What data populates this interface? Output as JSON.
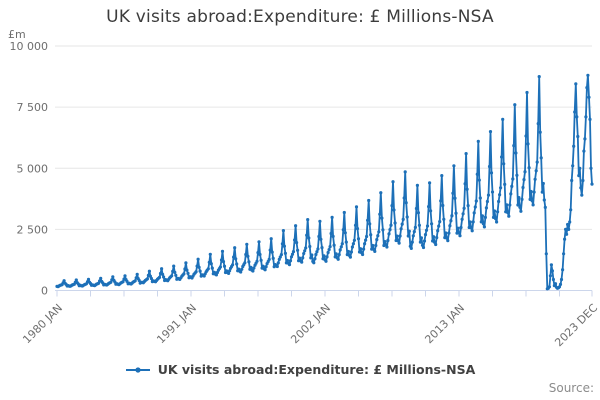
{
  "page": {
    "title": "UK visits abroad:Expenditure: £ Millions-NSA",
    "source_label": "Source:"
  },
  "legend": {
    "label": "UK visits abroad:Expenditure: £ Millions-NSA"
  },
  "colors": {
    "line": "#1d70b8",
    "grid": "#e6e6e6",
    "axis": "#ccd6eb",
    "tick_text": "#6e6e6e",
    "title_text": "#3c3c3c",
    "legend_text": "#414141",
    "source_text": "#8c8c8c"
  },
  "chart_data": {
    "type": "line",
    "title": "UK visits abroad:Expenditure: £ Millions-NSA",
    "unit_label": "£m",
    "xlabel": "",
    "ylabel": "£m",
    "frequency": "monthly",
    "x_start": "1980 JAN",
    "x_end": "2023 DEC",
    "n_points": 528,
    "ylim": [
      0,
      10000
    ],
    "grid": "horizontal-only",
    "legend_position": "bottom",
    "yticks": [
      {
        "value": 0,
        "label": "0"
      },
      {
        "value": 2500,
        "label": "2 500"
      },
      {
        "value": 5000,
        "label": "5 000"
      },
      {
        "value": 7500,
        "label": "7 500"
      },
      {
        "value": 10000,
        "label": "10 000"
      }
    ],
    "xticks": {
      "minor_month_indices": [
        0,
        33,
        66,
        99,
        132,
        165,
        198,
        231,
        264,
        297,
        330,
        363,
        396,
        429,
        462,
        495,
        527
      ],
      "labeled": [
        {
          "month_index": 0,
          "label": "1980 JAN"
        },
        {
          "month_index": 132,
          "label": "1991 JAN"
        },
        {
          "month_index": 264,
          "label": "2002 JAN"
        },
        {
          "month_index": 396,
          "label": "2013 JAN"
        },
        {
          "month_index": 527,
          "label": "2023 DEC"
        }
      ]
    },
    "series": [
      {
        "name": "UK visits abroad:Expenditure: £ Millions-NSA",
        "color": "#1d70b8",
        "marker": "circle",
        "values": [
          168,
          160,
          184,
          208,
          224,
          240,
          312,
          400,
          296,
          248,
          184,
          200,
          181,
          172,
          198,
          224,
          241,
          258,
          335,
          430,
          318,
          267,
          198,
          215,
          193,
          184,
          212,
          239,
          258,
          276,
          359,
          460,
          340,
          285,
          212,
          230,
          210,
          200,
          230,
          260,
          280,
          300,
          390,
          500,
          370,
          310,
          230,
          250,
          235,
          224,
          258,
          291,
          314,
          336,
          437,
          560,
          414,
          347,
          258,
          280,
          252,
          240,
          276,
          312,
          336,
          360,
          468,
          600,
          444,
          372,
          276,
          300,
          277,
          264,
          304,
          343,
          370,
          396,
          515,
          660,
          488,
          409,
          304,
          330,
          332,
          316,
          363,
          411,
          442,
          474,
          616,
          790,
          585,
          490,
          363,
          395,
          374,
          356,
          409,
          463,
          498,
          534,
          694,
          890,
          659,
          552,
          409,
          445,
          420,
          400,
          460,
          520,
          560,
          600,
          780,
          1000,
          740,
          620,
          460,
          500,
          475,
          452,
          520,
          588,
          633,
          678,
          881,
          1130,
          836,
          701,
          520,
          565,
          538,
          512,
          589,
          666,
          717,
          768,
          998,
          1280,
          947,
          794,
          589,
          640,
          622,
          592,
          681,
          770,
          829,
          888,
          1154,
          1480,
          1095,
          918,
          681,
          740,
          672,
          640,
          736,
          832,
          896,
          960,
          1248,
          1600,
          1184,
          992,
          736,
          800,
          735,
          700,
          805,
          910,
          980,
          1050,
          1365,
          1750,
          1295,
          1085,
          805,
          875,
          794,
          756,
          869,
          983,
          1058,
          1134,
          1474,
          1890,
          1399,
          1172,
          869,
          945,
          836,
          796,
          915,
          1035,
          1114,
          1194,
          1552,
          1990,
          1473,
          1234,
          915,
          995,
          890,
          848,
          975,
          1102,
          1187,
          1272,
          1654,
          2120,
          1569,
          1314,
          975,
          1060,
          1029,
          980,
          1127,
          1274,
          1372,
          1470,
          1911,
          2450,
          1813,
          1519,
          1127,
          1225,
          1113,
          1060,
          1219,
          1378,
          1484,
          1590,
          2067,
          2650,
          1961,
          1643,
          1219,
          1325,
          1218,
          1160,
          1334,
          1508,
          1624,
          1740,
          2262,
          2900,
          2146,
          1798,
          1334,
          1450,
          1189,
          1132,
          1302,
          1472,
          1585,
          1698,
          2207,
          2830,
          2094,
          1755,
          1302,
          1415,
          1256,
          1196,
          1375,
          1555,
          1674,
          1794,
          2332,
          2990,
          2213,
          1854,
          1375,
          1495,
          1340,
          1276,
          1467,
          1659,
          1786,
          1914,
          2488,
          3190,
          2361,
          1978,
          1467,
          1595,
          1436,
          1368,
          1573,
          1778,
          1915,
          2052,
          2668,
          3420,
          2531,
          2120,
          1573,
          1710,
          1546,
          1472,
          1693,
          1914,
          2061,
          2208,
          2870,
          3680,
          2723,
          2282,
          1693,
          1840,
          1680,
          1600,
          1840,
          2080,
          2240,
          2400,
          3120,
          4000,
          2960,
          2480,
          1840,
          2000,
          1869,
          1780,
          2047,
          2314,
          2492,
          2670,
          3471,
          4450,
          3293,
          2759,
          2047,
          2225,
          2037,
          1940,
          2231,
          2522,
          2716,
          2910,
          3783,
          4850,
          3589,
          3007,
          2231,
          2425,
          1806,
          1720,
          1978,
          2236,
          2408,
          2580,
          3354,
          4300,
          3182,
          2666,
          1978,
          2150,
          1848,
          1760,
          2024,
          2288,
          2464,
          2640,
          3432,
          4400,
          3256,
          2728,
          2024,
          2200,
          1974,
          1880,
          2162,
          2444,
          2632,
          2820,
          3666,
          4700,
          3478,
          2914,
          2162,
          2350,
          2142,
          2040,
          2346,
          2652,
          2856,
          3060,
          3978,
          5100,
          3774,
          3162,
          2346,
          2550,
          2352,
          2240,
          2576,
          2912,
          3136,
          3360,
          4368,
          5600,
          4144,
          3472,
          2576,
          2800,
          2562,
          2440,
          2806,
          3172,
          3416,
          3660,
          4758,
          6100,
          4514,
          3782,
          2806,
          3050,
          2730,
          2600,
          2990,
          3380,
          3640,
          3900,
          5070,
          6500,
          4810,
          4030,
          2990,
          3250,
          2940,
          2800,
          3220,
          3640,
          3920,
          4200,
          5460,
          7000,
          5180,
          4340,
          3220,
          3500,
          3192,
          3040,
          3496,
          3952,
          4256,
          4560,
          5928,
          7600,
          5624,
          4712,
          3496,
          3800,
          3402,
          3240,
          3726,
          4212,
          4536,
          4860,
          6318,
          8100,
          5994,
          5022,
          3726,
          4050,
          3675,
          3500,
          4025,
          4550,
          4900,
          5250,
          6825,
          8750,
          6475,
          5425,
          4025,
          4375,
          3700,
          3400,
          1500,
          70,
          90,
          150,
          600,
          1050,
          800,
          450,
          200,
          280,
          130,
          90,
          110,
          150,
          250,
          450,
          850,
          1500,
          2100,
          2500,
          2300,
          2700,
          2500,
          2800,
          3300,
          4500,
          5100,
          5900,
          7300,
          8450,
          7100,
          6300,
          4700,
          5000,
          4200,
          3900,
          4500,
          5700,
          6200,
          7100,
          8300,
          8800,
          7900,
          7000,
          5000,
          4350
        ]
      }
    ]
  }
}
